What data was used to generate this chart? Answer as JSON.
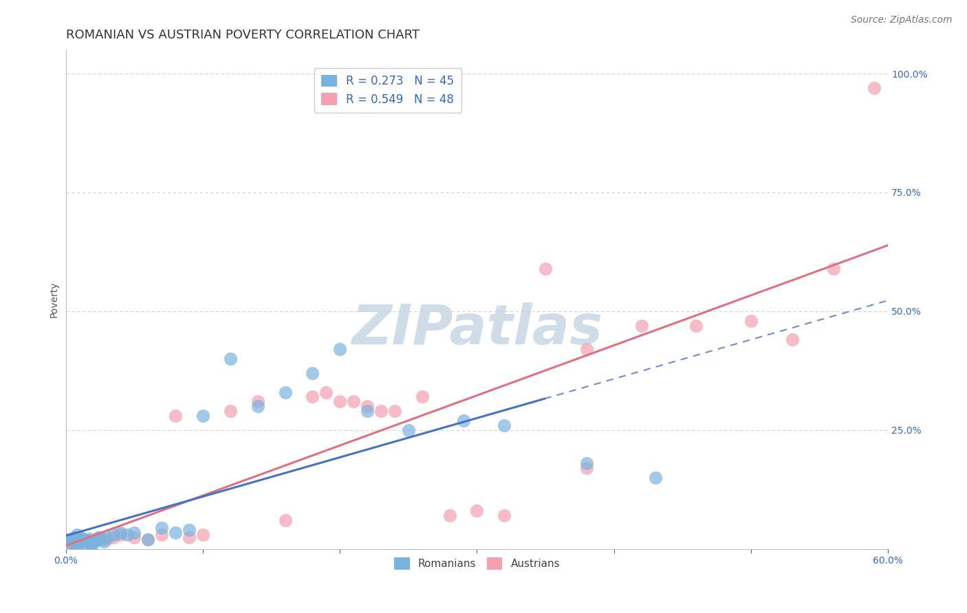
{
  "title": "ROMANIAN VS AUSTRIAN POVERTY CORRELATION CHART",
  "source": "Source: ZipAtlas.com",
  "ylabel": "Poverty",
  "xlim": [
    0.0,
    0.6
  ],
  "ylim": [
    0.0,
    1.05
  ],
  "ytick_positions": [
    0.0,
    0.25,
    0.5,
    0.75,
    1.0
  ],
  "ytick_labels": [
    "",
    "25.0%",
    "50.0%",
    "75.0%",
    "100.0%"
  ],
  "xtick_positions": [
    0.0,
    0.1,
    0.2,
    0.3,
    0.4,
    0.5,
    0.6
  ],
  "xtick_labels": [
    "0.0%",
    "",
    "",
    "",
    "",
    "",
    "60.0%"
  ],
  "grid_color": "#cccccc",
  "background_color": "#ffffff",
  "romanian_color": "#7ab3e0",
  "austrian_color": "#f4a0b0",
  "romanian_R": 0.273,
  "romanian_N": 45,
  "austrian_R": 0.549,
  "austrian_N": 48,
  "legend_text_color": "#3366cc",
  "trendline_blue_color": "#4472c4",
  "trendline_pink_color": "#e07080",
  "romanian_points_x": [
    0.001,
    0.002,
    0.003,
    0.004,
    0.005,
    0.006,
    0.007,
    0.008,
    0.009,
    0.01,
    0.011,
    0.012,
    0.013,
    0.014,
    0.015,
    0.016,
    0.017,
    0.018,
    0.019,
    0.02,
    0.022,
    0.024,
    0.026,
    0.028,
    0.03,
    0.035,
    0.04,
    0.045,
    0.05,
    0.06,
    0.07,
    0.08,
    0.09,
    0.1,
    0.12,
    0.14,
    0.16,
    0.18,
    0.2,
    0.22,
    0.25,
    0.29,
    0.32,
    0.38,
    0.43
  ],
  "romanian_points_y": [
    0.02,
    0.015,
    0.018,
    0.022,
    0.012,
    0.025,
    0.01,
    0.03,
    0.015,
    0.02,
    0.025,
    0.015,
    0.02,
    0.01,
    0.015,
    0.018,
    0.022,
    0.012,
    0.008,
    0.015,
    0.018,
    0.025,
    0.02,
    0.015,
    0.025,
    0.03,
    0.035,
    0.03,
    0.035,
    0.02,
    0.045,
    0.035,
    0.04,
    0.28,
    0.4,
    0.3,
    0.33,
    0.37,
    0.42,
    0.29,
    0.25,
    0.27,
    0.26,
    0.18,
    0.15
  ],
  "austrian_points_x": [
    0.001,
    0.002,
    0.003,
    0.004,
    0.005,
    0.006,
    0.007,
    0.008,
    0.009,
    0.01,
    0.012,
    0.014,
    0.016,
    0.018,
    0.02,
    0.025,
    0.03,
    0.035,
    0.04,
    0.05,
    0.06,
    0.07,
    0.08,
    0.09,
    0.1,
    0.12,
    0.14,
    0.16,
    0.18,
    0.2,
    0.22,
    0.24,
    0.26,
    0.28,
    0.3,
    0.32,
    0.35,
    0.38,
    0.42,
    0.46,
    0.5,
    0.53,
    0.56,
    0.59,
    0.19,
    0.21,
    0.23,
    0.38
  ],
  "austrian_points_y": [
    0.015,
    0.012,
    0.018,
    0.01,
    0.02,
    0.015,
    0.012,
    0.025,
    0.01,
    0.018,
    0.015,
    0.02,
    0.015,
    0.012,
    0.018,
    0.025,
    0.02,
    0.025,
    0.03,
    0.025,
    0.02,
    0.03,
    0.28,
    0.025,
    0.03,
    0.29,
    0.31,
    0.06,
    0.32,
    0.31,
    0.3,
    0.29,
    0.32,
    0.07,
    0.08,
    0.07,
    0.59,
    0.42,
    0.47,
    0.47,
    0.48,
    0.44,
    0.59,
    0.97,
    0.33,
    0.31,
    0.29,
    0.17
  ],
  "watermark": "ZIPatlas",
  "title_fontsize": 13,
  "axis_label_fontsize": 10,
  "tick_fontsize": 10,
  "source_fontsize": 10
}
